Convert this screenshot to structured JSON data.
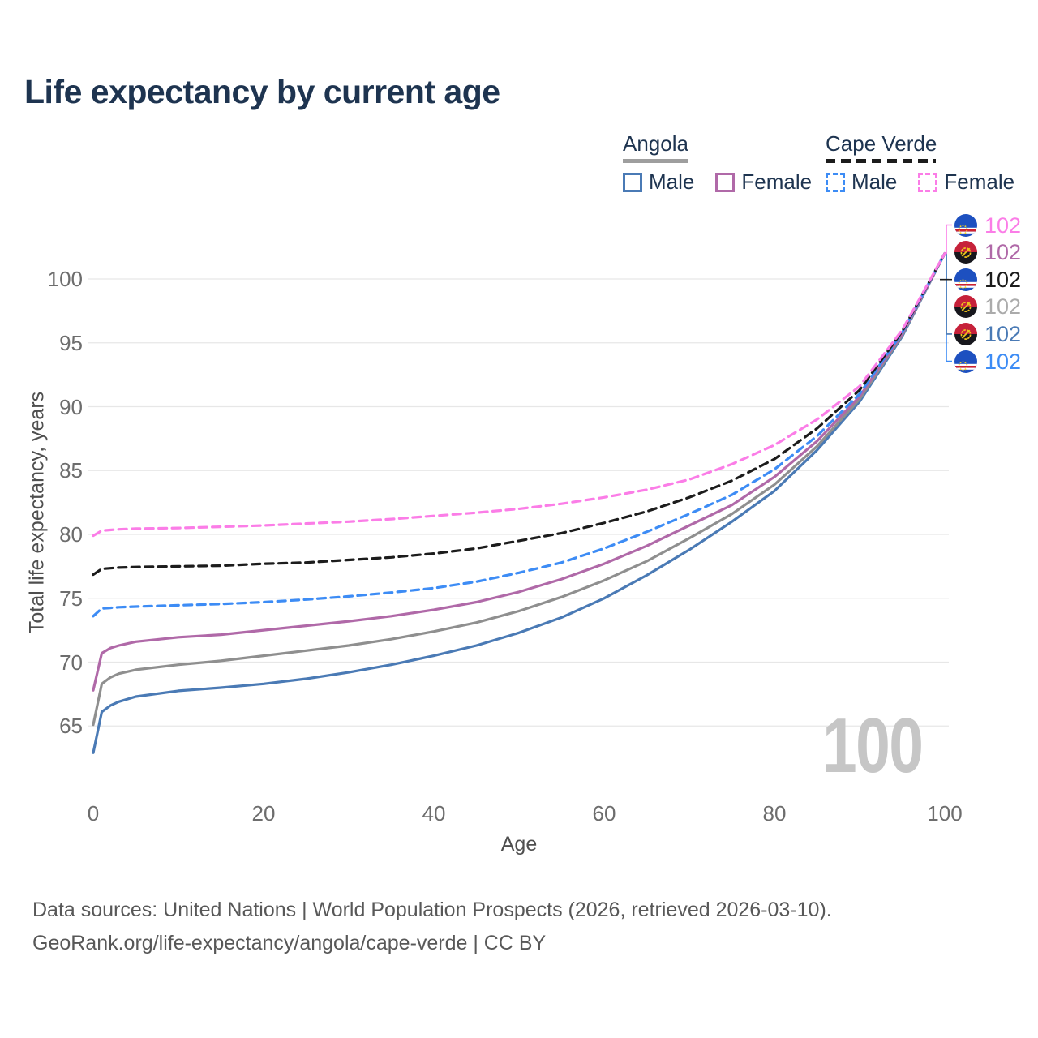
{
  "title": "Life expectancy by current age",
  "legend": {
    "groups": [
      {
        "title": "Angola",
        "style": "solid",
        "underline_color": "#9e9e9e",
        "items": [
          {
            "label": "Male",
            "color": "#4a7ab5",
            "dashed": false
          },
          {
            "label": "Female",
            "color": "#b069a8",
            "dashed": false
          }
        ]
      },
      {
        "title": "Cape Verde",
        "style": "dashed",
        "underline_color": "#1c1c1c",
        "items": [
          {
            "label": "Male",
            "color": "#3d8cf5",
            "dashed": true
          },
          {
            "label": "Female",
            "color": "#fb7de7",
            "dashed": true
          }
        ]
      }
    ]
  },
  "y_axis": {
    "title": "Total life expectancy, years",
    "ticks": [
      100,
      95,
      90,
      85,
      80,
      75,
      70,
      65
    ]
  },
  "x_axis": {
    "title": "Age",
    "ticks": [
      0,
      20,
      40,
      60,
      80,
      100
    ]
  },
  "watermark": "100",
  "chart_data": {
    "type": "line",
    "title": "Life expectancy by current age",
    "xlabel": "Age",
    "ylabel": "Total life expectancy, years",
    "xlim": [
      0,
      100
    ],
    "ylim": [
      62,
      103
    ],
    "grid": "horizontal",
    "legend_position": "top-right",
    "x": [
      0,
      1,
      2,
      3,
      5,
      10,
      15,
      20,
      25,
      30,
      35,
      40,
      45,
      50,
      55,
      60,
      65,
      70,
      75,
      80,
      85,
      90,
      95,
      100
    ],
    "series": [
      {
        "id": "angola-male",
        "name": "Angola Male",
        "country": "angola",
        "color": "#4a7ab5",
        "dashed": false,
        "values": [
          62.9,
          66.1,
          66.6,
          66.9,
          67.3,
          67.75,
          68.0,
          68.3,
          68.7,
          69.2,
          69.8,
          70.5,
          71.3,
          72.3,
          73.5,
          75.0,
          76.8,
          78.8,
          81.0,
          83.4,
          86.6,
          90.4,
          95.5,
          102
        ]
      },
      {
        "id": "angola-all",
        "name": "Angola",
        "country": "angola",
        "color": "#8f8f8f",
        "dashed": false,
        "values": [
          65.1,
          68.3,
          68.8,
          69.1,
          69.4,
          69.8,
          70.1,
          70.5,
          70.9,
          71.3,
          71.8,
          72.4,
          73.1,
          74.0,
          75.1,
          76.4,
          77.9,
          79.7,
          81.6,
          83.9,
          86.9,
          90.6,
          95.6,
          102
        ]
      },
      {
        "id": "angola-female",
        "name": "Angola Female",
        "country": "angola",
        "color": "#b069a8",
        "dashed": false,
        "values": [
          67.8,
          70.7,
          71.1,
          71.3,
          71.6,
          71.95,
          72.15,
          72.5,
          72.85,
          73.2,
          73.6,
          74.1,
          74.7,
          75.5,
          76.5,
          77.7,
          79.1,
          80.7,
          82.3,
          84.5,
          87.3,
          90.8,
          95.7,
          102
        ]
      },
      {
        "id": "capeverde-male",
        "name": "Cape Verde Male",
        "country": "cape-verde",
        "color": "#3d8cf5",
        "dashed": true,
        "values": [
          73.6,
          74.2,
          74.25,
          74.3,
          74.35,
          74.45,
          74.55,
          74.7,
          74.9,
          75.15,
          75.45,
          75.8,
          76.3,
          77.0,
          77.8,
          78.9,
          80.2,
          81.6,
          83.1,
          85.1,
          87.7,
          91.0,
          95.8,
          102
        ]
      },
      {
        "id": "capeverde-all",
        "name": "Cape Verde",
        "country": "cape-verde",
        "color": "#1c1c1c",
        "dashed": true,
        "values": [
          76.85,
          77.3,
          77.35,
          77.4,
          77.45,
          77.5,
          77.55,
          77.7,
          77.8,
          78.0,
          78.2,
          78.5,
          78.9,
          79.5,
          80.1,
          80.9,
          81.8,
          82.9,
          84.2,
          85.9,
          88.3,
          91.3,
          95.9,
          102
        ]
      },
      {
        "id": "capeverde-female",
        "name": "Cape Verde Female",
        "country": "cape-verde",
        "color": "#fb7de7",
        "dashed": true,
        "values": [
          79.9,
          80.3,
          80.35,
          80.4,
          80.45,
          80.5,
          80.6,
          80.7,
          80.85,
          81.0,
          81.2,
          81.45,
          81.7,
          82.0,
          82.4,
          82.9,
          83.5,
          84.3,
          85.5,
          87.0,
          89.0,
          91.6,
          96.0,
          102
        ]
      }
    ],
    "end_labels": [
      {
        "series": "capeverde-female",
        "country": "cape-verde",
        "value": "102",
        "color": "#fb7de7"
      },
      {
        "series": "angola-female",
        "country": "angola",
        "value": "102",
        "color": "#b069a8"
      },
      {
        "series": "capeverde-all",
        "country": "cape-verde",
        "value": "102",
        "color": "#1c1c1c"
      },
      {
        "series": "angola-all",
        "country": "angola",
        "value": "102",
        "color": "#ababab"
      },
      {
        "series": "angola-male",
        "country": "angola",
        "value": "102",
        "color": "#4a7ab5"
      },
      {
        "series": "capeverde-male",
        "country": "cape-verde",
        "value": "102",
        "color": "#3d8cf5"
      }
    ]
  },
  "footer": {
    "line1": "Data sources: United Nations | World Population Prospects (2026, retrieved 2026-03-10).",
    "line2": "GeoRank.org/life-expectancy/angola/cape-verde | CC BY"
  }
}
